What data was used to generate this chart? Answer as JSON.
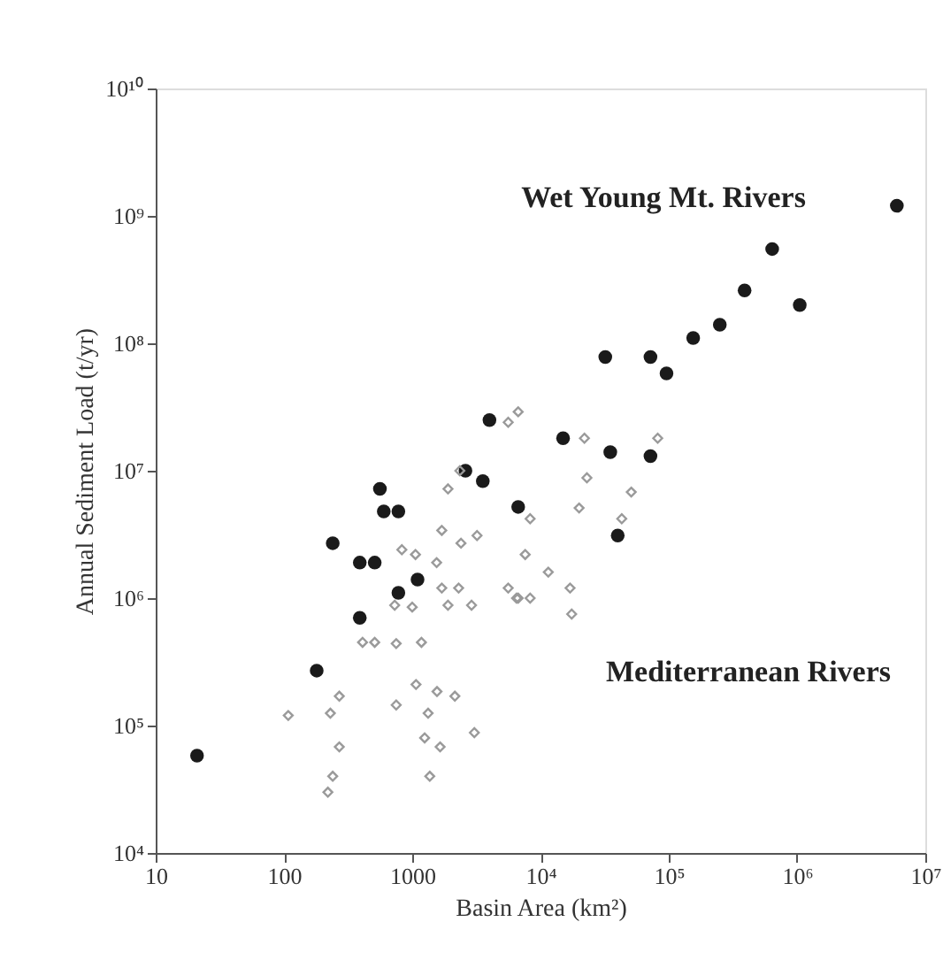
{
  "chart_data": {
    "type": "scatter",
    "xlabel": "Basin Area (km²)",
    "ylabel": "Annual Sediment Load (t/yr)",
    "log": "xy",
    "grid": false,
    "legend": false,
    "xlim": [
      10,
      10000000
    ],
    "ylim": [
      10000,
      10000000000
    ],
    "xticks": [
      10,
      100,
      1000,
      {
        "value": 10000,
        "label": "10⁴"
      },
      {
        "value": 100000,
        "label": "10⁵"
      },
      {
        "value": 1000000,
        "label": "10⁶"
      },
      {
        "value": 10000000,
        "label": "10⁷"
      }
    ],
    "yticks": [
      {
        "value": 10000,
        "label": "10⁴"
      },
      {
        "value": 100000,
        "label": "10⁵"
      },
      {
        "value": 1000000,
        "label": "10⁶"
      },
      {
        "value": 10000000,
        "label": "10⁷"
      },
      {
        "value": 100000000,
        "label": "10⁸"
      },
      {
        "value": 1000000000,
        "label": "10⁹"
      },
      {
        "value": 10000000000,
        "label": "10¹⁰"
      }
    ],
    "series": [
      {
        "name": "Wet Young Mt. Rivers",
        "color": "#1a1a1a",
        "marker": "circle",
        "x": [
          21,
          180,
          240,
          390,
          510,
          780,
          1100,
          390,
          560,
          600,
          780,
          2600,
          3550,
          4000,
          6700,
          15000,
          35000,
          72000,
          40000,
          32000,
          72000,
          96000,
          155000,
          250000,
          390000,
          640000,
          1050000,
          6000000
        ],
        "values": [
          58000,
          270000,
          2700000,
          1900000,
          1900000,
          1100000,
          1400000,
          700000,
          7200000,
          4800000,
          4800000,
          10000000,
          8300000,
          25000000,
          5200000,
          18000000,
          14000000,
          13000000,
          3100000,
          78000000,
          78000000,
          58000000,
          110000000,
          140000000,
          260000000,
          550000000,
          200000000,
          1200000000
        ]
      },
      {
        "name": "Mediterranean Rivers",
        "color": "#9a9a9a",
        "marker": "diamond",
        "x": [
          108,
          230,
          270,
          270,
          240,
          220,
          410,
          510,
          750,
          1180,
          750,
          1070,
          1560,
          2150,
          1330,
          1250,
          1650,
          1370,
          3050,
          730,
          1000,
          1900,
          2900,
          1700,
          2300,
          830,
          1060,
          1700,
          2400,
          3200,
          5600,
          6700,
          1550,
          8300,
          7600,
          11500,
          17000,
          8300,
          6500,
          17500,
          20000,
          43000,
          6700,
          22000,
          23000,
          51000,
          82000,
          5600,
          1900,
          2350
        ],
        "values": [
          120000,
          125000,
          170000,
          68000,
          40000,
          30000,
          450000,
          450000,
          440000,
          450000,
          145000,
          210000,
          185000,
          170000,
          125000,
          80000,
          68000,
          40000,
          88000,
          880000,
          850000,
          880000,
          880000,
          1200000,
          1200000,
          2400000,
          2200000,
          3400000,
          2700000,
          3100000,
          1200000,
          1000000,
          1900000,
          4200000,
          2200000,
          1600000,
          1200000,
          1000000,
          1000000,
          750000,
          5100000,
          4200000,
          29000000,
          18000000,
          8800000,
          6800000,
          18000000,
          24000000,
          7200000,
          10000000
        ]
      }
    ]
  }
}
